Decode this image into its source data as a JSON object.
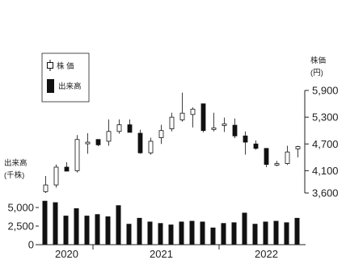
{
  "chart_data": [
    {
      "type": "candlestick",
      "legend": {
        "candle_label": "株 価",
        "volume_label": "出来高"
      },
      "ylabel": "株価",
      "yunit": "(円)",
      "ylim": [
        3600,
        5900
      ],
      "yticks": [
        "5,900",
        "5,300",
        "4,700",
        "4,100",
        "3,600"
      ],
      "ytick_values": [
        5900,
        5300,
        4700,
        4100,
        3600
      ],
      "colors": {
        "up": "#ffffff",
        "down": "#111111",
        "wick": "#111111"
      },
      "candles": [
        {
          "open": 3630,
          "high": 3980,
          "low": 3600,
          "close": 3780
        },
        {
          "open": 3780,
          "high": 4240,
          "low": 3720,
          "close": 4180
        },
        {
          "open": 4180,
          "high": 4290,
          "low": 4090,
          "close": 4090
        },
        {
          "open": 4100,
          "high": 4900,
          "low": 4060,
          "close": 4800
        },
        {
          "open": 4720,
          "high": 4940,
          "low": 4480,
          "close": 4740
        },
        {
          "open": 4800,
          "high": 4800,
          "low": 4650,
          "close": 4680
        },
        {
          "open": 4760,
          "high": 5250,
          "low": 4660,
          "close": 4980
        },
        {
          "open": 4980,
          "high": 5250,
          "low": 4930,
          "close": 5130
        },
        {
          "open": 5130,
          "high": 5250,
          "low": 4960,
          "close": 4960
        },
        {
          "open": 4940,
          "high": 5020,
          "low": 4480,
          "close": 4500
        },
        {
          "open": 4500,
          "high": 4840,
          "low": 4460,
          "close": 4760
        },
        {
          "open": 4840,
          "high": 5130,
          "low": 4700,
          "close": 5000
        },
        {
          "open": 5040,
          "high": 5400,
          "low": 4980,
          "close": 5300
        },
        {
          "open": 5240,
          "high": 5850,
          "low": 5200,
          "close": 5390
        },
        {
          "open": 5360,
          "high": 5520,
          "low": 5070,
          "close": 5480
        },
        {
          "open": 5600,
          "high": 5600,
          "low": 4960,
          "close": 5000
        },
        {
          "open": 5040,
          "high": 5400,
          "low": 4980,
          "close": 5060
        },
        {
          "open": 5120,
          "high": 5290,
          "low": 4970,
          "close": 5150
        },
        {
          "open": 5120,
          "high": 5270,
          "low": 4830,
          "close": 4880
        },
        {
          "open": 4880,
          "high": 4980,
          "low": 4460,
          "close": 4740
        },
        {
          "open": 4700,
          "high": 4780,
          "low": 4570,
          "close": 4600
        },
        {
          "open": 4600,
          "high": 4600,
          "low": 4180,
          "close": 4240
        },
        {
          "open": 4260,
          "high": 4320,
          "low": 4200,
          "close": 4260
        },
        {
          "open": 4260,
          "high": 4660,
          "low": 4230,
          "close": 4520
        },
        {
          "open": 4590,
          "high": 4660,
          "low": 4400,
          "close": 4640
        }
      ]
    },
    {
      "type": "bar",
      "ylabel": "出来高",
      "yunit": "(千株)",
      "ylim": [
        0,
        6000
      ],
      "yticks": [
        "5,000",
        "2,500",
        "0"
      ],
      "ytick_values": [
        5000,
        2500,
        0
      ],
      "x_tick_labels": [
        "2020",
        "2021",
        "2022"
      ],
      "values": [
        5900,
        5700,
        3900,
        4900,
        3900,
        4100,
        3800,
        5300,
        2800,
        3600,
        3100,
        2900,
        2700,
        3100,
        3200,
        3100,
        2300,
        2900,
        3000,
        4300,
        2800,
        3100,
        3200,
        3000,
        3600
      ],
      "color": "#111111"
    }
  ]
}
